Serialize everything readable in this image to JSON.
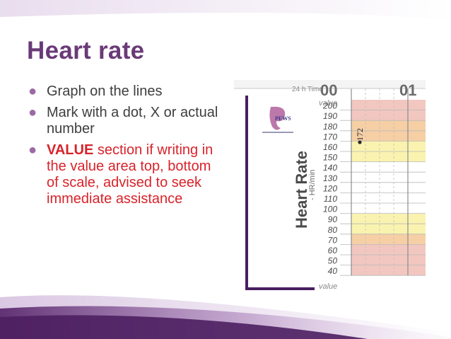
{
  "slide": {
    "title": "Heart rate",
    "bullets": [
      {
        "text": "Graph on the lines"
      },
      {
        "text": "Mark with a dot, X or actual number"
      },
      {
        "highlight": "VALUE",
        "text": " section if writing in the value area top, bottom of scale, advised to seek immediate assistance"
      }
    ]
  },
  "chart_image": {
    "header_label": "24 h Time",
    "time_labels": [
      "00",
      "01"
    ],
    "value_label": "value",
    "axis_title": "Heart Rate",
    "axis_unit": "- HR/min",
    "rate_labels": [
      "200",
      "190",
      "180",
      "170",
      "160",
      "150",
      "140",
      "130",
      "120",
      "110",
      "100",
      "90",
      "80",
      "70",
      "60",
      "50",
      "40"
    ],
    "logo_text": "PEWS",
    "plotted_value": "172",
    "band_colors": {
      "red": "#f2c7c0",
      "orange": "#f6cfa5",
      "yellow": "#faf3b0",
      "white": "#ffffff"
    },
    "band_pattern": [
      "red",
      "red",
      "orange",
      "orange",
      "yellow",
      "yellow",
      "white",
      "white",
      "white",
      "white",
      "white",
      "yellow",
      "yellow",
      "orange",
      "red",
      "red",
      "red"
    ],
    "colors": {
      "title": "#6a3a78",
      "body_text": "#3e3e3e",
      "accent_red": "#d8232a",
      "bullet": "#9b6aa6"
    }
  }
}
